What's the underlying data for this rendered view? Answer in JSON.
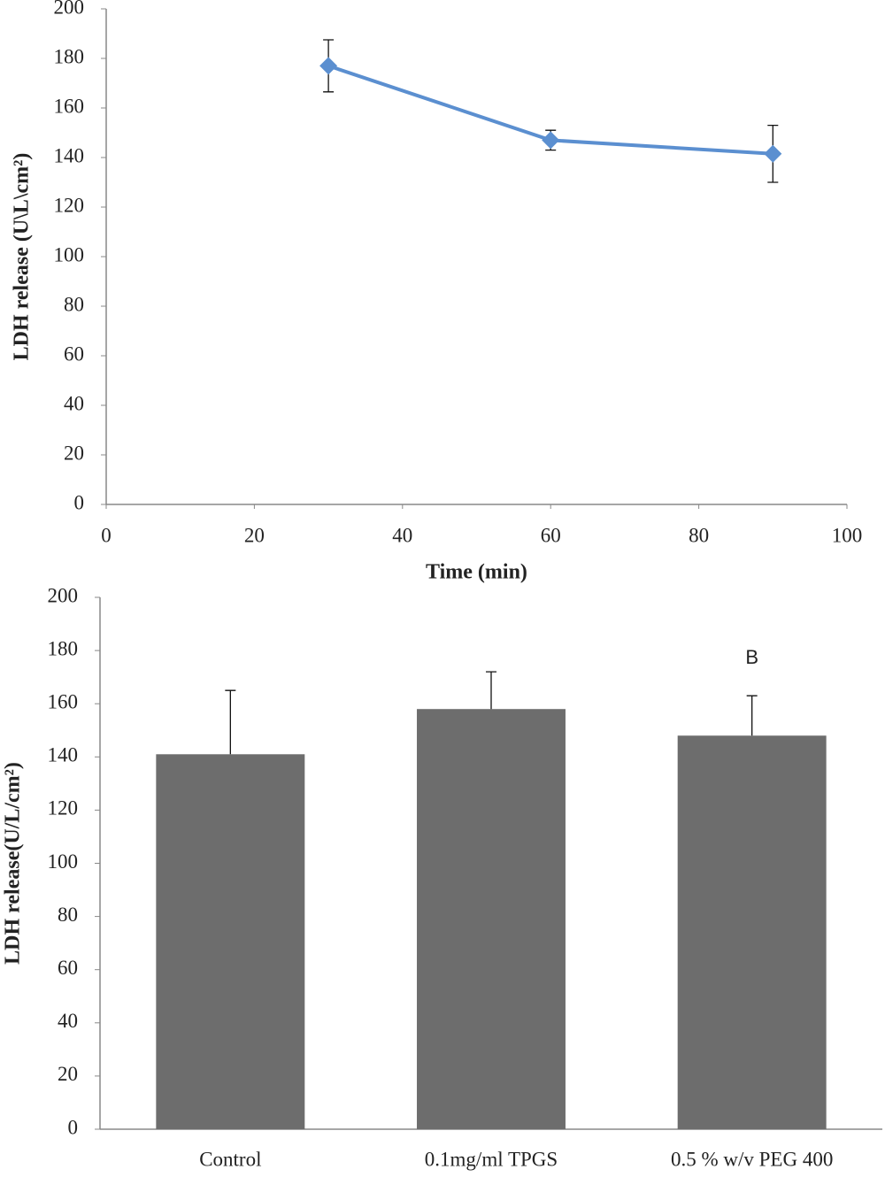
{
  "chart_data": [
    {
      "type": "line",
      "xlabel": "Time (min)",
      "ylabel": "LDH release (U\\L\\cm²)",
      "xlim": [
        0,
        100
      ],
      "xticks": [
        0,
        20,
        40,
        60,
        80,
        100
      ],
      "ylim": [
        0,
        200
      ],
      "yticks": [
        0,
        20,
        40,
        60,
        80,
        100,
        120,
        140,
        160,
        180,
        200
      ],
      "series": [
        {
          "color": "#5b8fd0",
          "x": [
            30,
            60,
            90
          ],
          "values": [
            177,
            147,
            141.5
          ],
          "errors": [
            10.5,
            4,
            11.5
          ]
        }
      ]
    },
    {
      "type": "bar",
      "ylabel": "LDH release(U/L/cm²)",
      "categories": [
        "Control",
        "0.1mg/ml TPGS",
        "0.5 % w/v PEG 400"
      ],
      "values": [
        141,
        158,
        148
      ],
      "errors": [
        24,
        14,
        15
      ],
      "color": "#6d6d6d",
      "ylim": [
        0,
        200
      ],
      "yticks": [
        0,
        20,
        40,
        60,
        80,
        100,
        120,
        140,
        160,
        180,
        200
      ],
      "annotations": [
        {
          "text": "B",
          "category": "0.5 % w/v PEG 400"
        }
      ]
    }
  ]
}
